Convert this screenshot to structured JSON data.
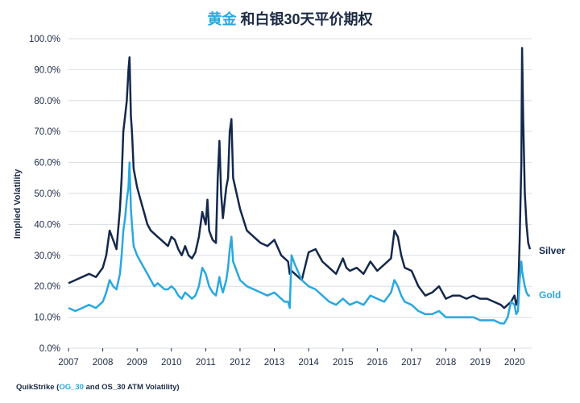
{
  "chart_data": {
    "type": "line",
    "title_part1": "黄金",
    "title_part2": " 和白银30天平价期权",
    "ylabel": "Implied Volatility",
    "ylim": [
      0,
      100
    ],
    "xlim": [
      2007,
      2020.5
    ],
    "yticks": [
      "0.0%",
      "10.0%",
      "20.0%",
      "30.0%",
      "40.0%",
      "50.0%",
      "60.0%",
      "70.0%",
      "80.0%",
      "90.0%",
      "100.0%"
    ],
    "xticks": [
      "2007",
      "2008",
      "2009",
      "2010",
      "2011",
      "2012",
      "2013",
      "2014",
      "2015",
      "2016",
      "2017",
      "2018",
      "2019",
      "2020"
    ],
    "grid": true,
    "colors": {
      "Silver": "#14284b",
      "Gold": "#29a8e0",
      "grid": "#d9dde3",
      "title_accent": "#29a8e0"
    },
    "series": [
      {
        "name": "Silver",
        "x": [
          2007.0,
          2007.2,
          2007.4,
          2007.6,
          2007.8,
          2008.0,
          2008.1,
          2008.2,
          2008.3,
          2008.4,
          2008.5,
          2008.55,
          2008.6,
          2008.65,
          2008.7,
          2008.75,
          2008.78,
          2008.82,
          2008.85,
          2008.9,
          2009.0,
          2009.1,
          2009.2,
          2009.3,
          2009.4,
          2009.5,
          2009.6,
          2009.7,
          2009.8,
          2009.9,
          2010.0,
          2010.1,
          2010.2,
          2010.3,
          2010.4,
          2010.5,
          2010.6,
          2010.7,
          2010.8,
          2010.9,
          2011.0,
          2011.05,
          2011.1,
          2011.2,
          2011.3,
          2011.35,
          2011.4,
          2011.45,
          2011.5,
          2011.6,
          2011.65,
          2011.7,
          2011.75,
          2011.8,
          2011.9,
          2012.0,
          2012.2,
          2012.4,
          2012.6,
          2012.8,
          2013.0,
          2013.2,
          2013.3,
          2013.4,
          2013.45,
          2013.5,
          2013.6,
          2013.8,
          2014.0,
          2014.2,
          2014.4,
          2014.6,
          2014.8,
          2015.0,
          2015.1,
          2015.2,
          2015.4,
          2015.6,
          2015.8,
          2016.0,
          2016.2,
          2016.4,
          2016.5,
          2016.6,
          2016.7,
          2016.8,
          2017.0,
          2017.2,
          2017.4,
          2017.6,
          2017.8,
          2018.0,
          2018.2,
          2018.4,
          2018.6,
          2018.8,
          2019.0,
          2019.2,
          2019.4,
          2019.6,
          2019.7,
          2019.8,
          2019.9,
          2020.0,
          2020.05,
          2020.1,
          2020.15,
          2020.2,
          2020.22,
          2020.25,
          2020.3,
          2020.35,
          2020.4,
          2020.45
        ],
        "values": [
          21,
          22,
          23,
          24,
          23,
          26,
          30,
          38,
          35,
          32,
          45,
          55,
          70,
          75,
          80,
          90,
          94,
          75,
          70,
          58,
          52,
          48,
          44,
          40,
          38,
          37,
          36,
          35,
          34,
          33,
          36,
          35,
          32,
          30,
          33,
          30,
          29,
          31,
          36,
          44,
          40,
          48,
          38,
          35,
          34,
          55,
          67,
          50,
          42,
          52,
          55,
          70,
          74,
          55,
          50,
          45,
          38,
          36,
          34,
          33,
          35,
          30,
          29,
          28,
          24,
          25,
          24,
          22,
          31,
          32,
          28,
          26,
          24,
          29,
          26,
          25,
          26,
          24,
          28,
          25,
          27,
          29,
          38,
          36,
          30,
          26,
          25,
          20,
          17,
          18,
          20,
          16,
          17,
          17,
          16,
          17,
          16,
          16,
          15,
          14,
          13,
          14,
          15,
          17,
          14,
          16,
          35,
          60,
          97,
          75,
          50,
          40,
          34,
          32
        ]
      },
      {
        "name": "Gold",
        "x": [
          2007.0,
          2007.2,
          2007.4,
          2007.6,
          2007.8,
          2008.0,
          2008.1,
          2008.2,
          2008.3,
          2008.4,
          2008.5,
          2008.55,
          2008.6,
          2008.65,
          2008.7,
          2008.75,
          2008.78,
          2008.82,
          2008.85,
          2008.9,
          2009.0,
          2009.1,
          2009.2,
          2009.3,
          2009.4,
          2009.5,
          2009.6,
          2009.7,
          2009.8,
          2009.9,
          2010.0,
          2010.1,
          2010.2,
          2010.3,
          2010.4,
          2010.5,
          2010.6,
          2010.7,
          2010.8,
          2010.9,
          2011.0,
          2011.05,
          2011.1,
          2011.2,
          2011.3,
          2011.35,
          2011.4,
          2011.45,
          2011.5,
          2011.6,
          2011.65,
          2011.7,
          2011.75,
          2011.8,
          2011.9,
          2012.0,
          2012.2,
          2012.4,
          2012.6,
          2012.8,
          2013.0,
          2013.2,
          2013.3,
          2013.4,
          2013.45,
          2013.5,
          2013.6,
          2013.8,
          2014.0,
          2014.2,
          2014.4,
          2014.6,
          2014.8,
          2015.0,
          2015.1,
          2015.2,
          2015.4,
          2015.6,
          2015.8,
          2016.0,
          2016.2,
          2016.4,
          2016.5,
          2016.6,
          2016.7,
          2016.8,
          2017.0,
          2017.2,
          2017.4,
          2017.6,
          2017.8,
          2018.0,
          2018.2,
          2018.4,
          2018.6,
          2018.8,
          2019.0,
          2019.2,
          2019.4,
          2019.6,
          2019.7,
          2019.8,
          2019.9,
          2020.0,
          2020.05,
          2020.1,
          2020.15,
          2020.2,
          2020.22,
          2020.25,
          2020.3,
          2020.35,
          2020.4,
          2020.45
        ],
        "values": [
          13,
          12,
          13,
          14,
          13,
          15,
          18,
          22,
          20,
          19,
          24,
          30,
          38,
          42,
          48,
          52,
          60,
          45,
          40,
          33,
          30,
          28,
          26,
          24,
          22,
          20,
          21,
          20,
          19,
          19,
          20,
          19,
          17,
          16,
          18,
          17,
          16,
          17,
          20,
          26,
          24,
          22,
          20,
          18,
          17,
          20,
          23,
          20,
          18,
          22,
          26,
          32,
          36,
          28,
          25,
          22,
          20,
          19,
          18,
          17,
          18,
          16,
          15,
          15,
          13,
          30,
          27,
          22,
          20,
          19,
          17,
          15,
          14,
          16,
          15,
          14,
          15,
          14,
          17,
          16,
          15,
          18,
          22,
          20,
          17,
          15,
          14,
          12,
          11,
          11,
          12,
          10,
          10,
          10,
          10,
          10,
          9,
          9,
          9,
          8,
          8,
          10,
          15,
          14,
          11,
          12,
          22,
          28,
          25,
          23,
          20,
          18,
          17,
          17
        ]
      }
    ],
    "end_labels": {
      "silver": "Silver",
      "gold": "Gold"
    },
    "source": {
      "prefix": "QuikStrike (",
      "code": "OG_30",
      "suffix": " and OS_30 ATM Volatility)"
    }
  }
}
